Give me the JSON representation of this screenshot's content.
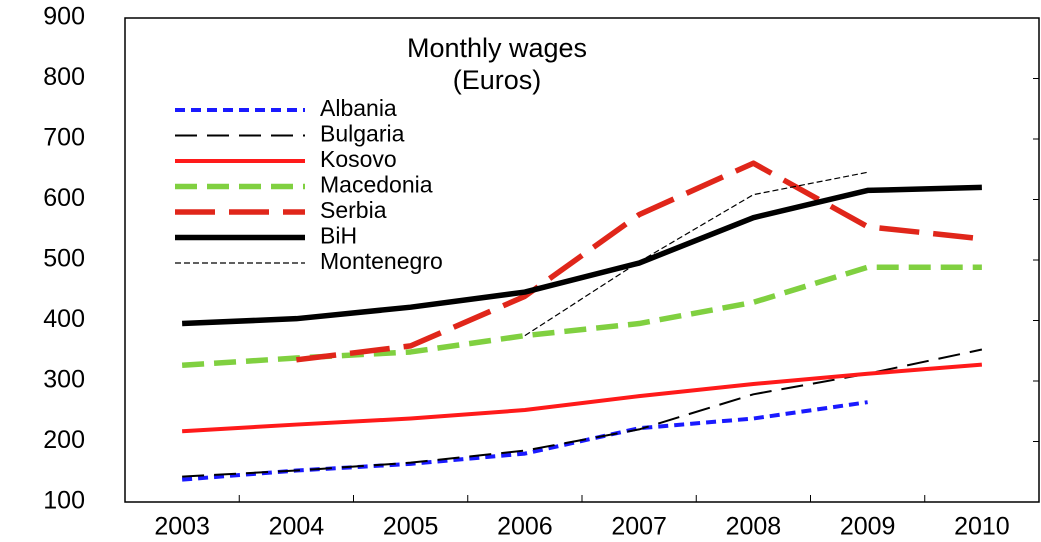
{
  "chart_data": {
    "type": "line",
    "title": "Monthly wages",
    "subtitle": "(Euros)",
    "categories": [
      "2003",
      "2004",
      "2005",
      "2006",
      "2007",
      "2008",
      "2009",
      "2010"
    ],
    "series": [
      {
        "name": "Albania",
        "color": "#1a1aff",
        "style": "short-dashed",
        "weight": "medium",
        "values": [
          137,
          152,
          163,
          180,
          222,
          238,
          265,
          null
        ]
      },
      {
        "name": "Bulgaria",
        "color": "#000000",
        "style": "dashed",
        "weight": "thin",
        "values": [
          142,
          152,
          165,
          185,
          220,
          278,
          312,
          352
        ]
      },
      {
        "name": "Kosovo",
        "color": "#ff1a1a",
        "style": "solid",
        "weight": "medium",
        "values": [
          217,
          228,
          238,
          252,
          275,
          295,
          312,
          327
        ]
      },
      {
        "name": "Macedonia",
        "color": "#80d040",
        "style": "dashed",
        "weight": "thick",
        "values": [
          326,
          338,
          348,
          375,
          395,
          430,
          488,
          488
        ]
      },
      {
        "name": "Serbia",
        "color": "#e0261a",
        "style": "long-dashed",
        "weight": "thick",
        "values": [
          null,
          335,
          358,
          440,
          575,
          660,
          555,
          535
        ]
      },
      {
        "name": "BiH",
        "color": "#000000",
        "style": "solid",
        "weight": "thick",
        "values": [
          395,
          403,
          422,
          447,
          495,
          570,
          615,
          620
        ]
      },
      {
        "name": "Montenegro",
        "color": "#000000",
        "style": "fine-dashed",
        "weight": "hairline",
        "values": [
          null,
          null,
          null,
          375,
          497,
          608,
          645,
          null
        ]
      }
    ],
    "ylim": [
      100,
      900
    ],
    "yticks": [
      100,
      200,
      300,
      400,
      500,
      600,
      700,
      800,
      900
    ],
    "grid": false
  }
}
